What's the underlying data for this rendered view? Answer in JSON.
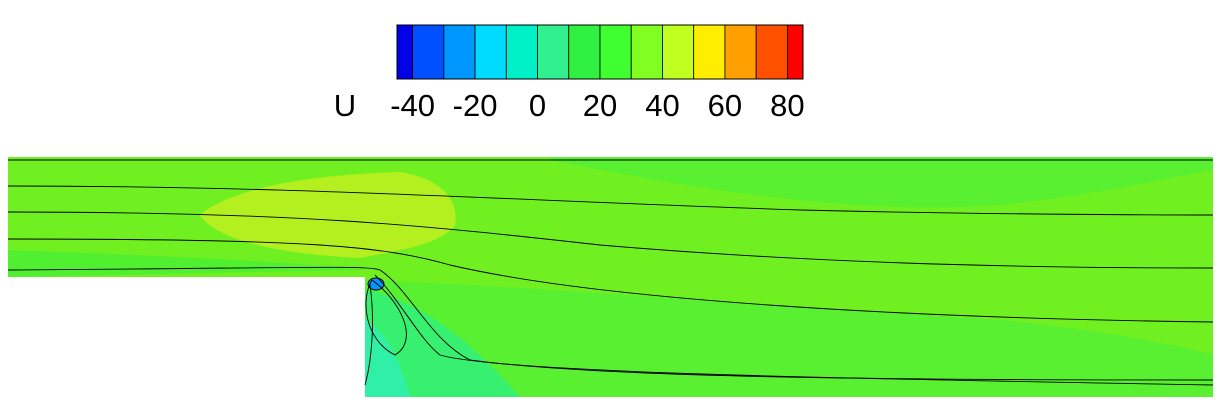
{
  "chart_data": {
    "type": "contour",
    "colorbar_title": "U",
    "clim": [
      -45,
      85
    ],
    "levels": [
      -40,
      -30,
      -20,
      -10,
      0,
      10,
      20,
      30,
      40,
      50,
      60,
      70,
      80
    ],
    "colors": [
      "#0000e6",
      "#0050ff",
      "#0096ff",
      "#00dcff",
      "#00f0c8",
      "#30f090",
      "#30f040",
      "#40ff30",
      "#80ff20",
      "#c0ff20",
      "#ffee00",
      "#ffa000",
      "#ff5000",
      "#ff0000"
    ],
    "cticks": [
      -40,
      -20,
      0,
      20,
      40,
      60,
      80
    ]
  }
}
